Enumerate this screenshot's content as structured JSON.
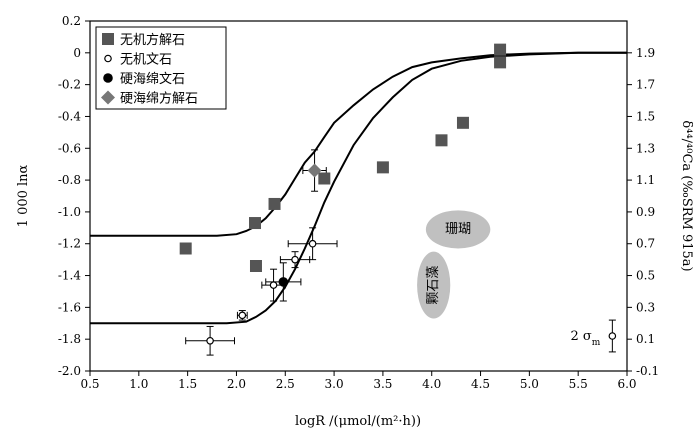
{
  "chart_data": {
    "type": "scatter",
    "xlabel": "logR /(μmol/(m²·h))",
    "ylabel": "1 000 lnα",
    "y2label": "δ⁴⁴/⁴⁰Ca (‰SRM 915a)",
    "xlim": [
      0.5,
      6.0
    ],
    "ylim": [
      -2.0,
      0.2
    ],
    "y2lim": [
      -0.1,
      2.1
    ],
    "xticks": [
      "0.5",
      "1.0",
      "1.5",
      "2.0",
      "2.5",
      "3.0",
      "3.5",
      "4.0",
      "4.5",
      "5.0",
      "5.5",
      "6.0"
    ],
    "yticks": [
      "0.2",
      "0",
      "-0.2",
      "-0.4",
      "-0.6",
      "-0.8",
      "-1.0",
      "-1.2",
      "-1.4",
      "-1.6",
      "-1.8",
      "-2.0"
    ],
    "y2ticks": [
      "1.9",
      "1.7",
      "1.5",
      "1.3",
      "1.1",
      "0.9",
      "0.7",
      "0.5",
      "0.3",
      "0.1",
      "-0.1"
    ],
    "legend_position": "top-left",
    "series": [
      {
        "name": "无机方解石",
        "marker": "square",
        "color": "#555555",
        "points": [
          {
            "x": 1.48,
            "y": -1.23
          },
          {
            "x": 2.19,
            "y": -1.07
          },
          {
            "x": 2.2,
            "y": -1.34
          },
          {
            "x": 2.39,
            "y": -0.95
          },
          {
            "x": 2.9,
            "y": -0.79
          },
          {
            "x": 3.5,
            "y": -0.72
          },
          {
            "x": 4.1,
            "y": -0.55
          },
          {
            "x": 4.32,
            "y": -0.44
          },
          {
            "x": 4.7,
            "y": 0.02
          },
          {
            "x": 4.7,
            "y": -0.06
          }
        ]
      },
      {
        "name": "无机文石",
        "marker": "open-circle",
        "color": "#000000",
        "points": [
          {
            "x": 1.73,
            "y": -1.81,
            "xerr": 0.25,
            "yerr": 0.09
          },
          {
            "x": 2.06,
            "y": -1.65,
            "xerr": 0.05,
            "yerr": 0.03
          },
          {
            "x": 2.38,
            "y": -1.46,
            "xerr": 0.12,
            "yerr": 0.1
          },
          {
            "x": 2.6,
            "y": -1.3,
            "xerr": 0.15,
            "yerr": 0.05
          },
          {
            "x": 2.78,
            "y": -1.2,
            "xerr": 0.25,
            "yerr": 0.1
          }
        ]
      },
      {
        "name": "硬海绵文石",
        "marker": "filled-circle",
        "color": "#000000",
        "points": [
          {
            "x": 2.48,
            "y": -1.44,
            "xerr": 0.18,
            "yerr": 0.12
          }
        ]
      },
      {
        "name": "硬海绵方解石",
        "marker": "diamond",
        "color": "#777777",
        "points": [
          {
            "x": 2.8,
            "y": -0.74,
            "xerr": 0.12,
            "yerr": 0.13
          }
        ]
      }
    ],
    "curves": [
      {
        "points": [
          [
            0.5,
            -1.15
          ],
          [
            1.5,
            -1.15
          ],
          [
            1.8,
            -1.15
          ],
          [
            2.0,
            -1.14
          ],
          [
            2.1,
            -1.12
          ],
          [
            2.2,
            -1.09
          ],
          [
            2.3,
            -1.04
          ],
          [
            2.4,
            -0.97
          ],
          [
            2.5,
            -0.89
          ],
          [
            2.6,
            -0.79
          ],
          [
            2.7,
            -0.69
          ],
          [
            2.8,
            -0.62
          ],
          [
            2.9,
            -0.53
          ],
          [
            3.0,
            -0.44
          ],
          [
            3.2,
            -0.33
          ],
          [
            3.4,
            -0.23
          ],
          [
            3.6,
            -0.15
          ],
          [
            3.8,
            -0.09
          ],
          [
            4.0,
            -0.06
          ],
          [
            4.3,
            -0.035
          ],
          [
            4.6,
            -0.015
          ],
          [
            5.0,
            -0.005
          ],
          [
            5.5,
            0.0
          ],
          [
            6.0,
            0.0
          ]
        ]
      },
      {
        "points": [
          [
            0.5,
            -1.7
          ],
          [
            1.5,
            -1.7
          ],
          [
            1.9,
            -1.7
          ],
          [
            2.1,
            -1.69
          ],
          [
            2.2,
            -1.66
          ],
          [
            2.3,
            -1.62
          ],
          [
            2.4,
            -1.56
          ],
          [
            2.5,
            -1.47
          ],
          [
            2.6,
            -1.36
          ],
          [
            2.7,
            -1.23
          ],
          [
            2.8,
            -1.09
          ],
          [
            2.9,
            -0.94
          ],
          [
            3.0,
            -0.81
          ],
          [
            3.2,
            -0.58
          ],
          [
            3.4,
            -0.41
          ],
          [
            3.6,
            -0.28
          ],
          [
            3.8,
            -0.17
          ],
          [
            4.0,
            -0.1
          ],
          [
            4.3,
            -0.05
          ],
          [
            4.6,
            -0.025
          ],
          [
            5.0,
            -0.01
          ],
          [
            5.5,
            0.0
          ],
          [
            6.0,
            0.0
          ]
        ]
      }
    ],
    "annotations": [
      {
        "text": "珊瑚",
        "x": 4.27,
        "y": -1.11,
        "rx": 0.33,
        "ry": 0.12,
        "rotate": false,
        "fill": "#c0c0c0"
      },
      {
        "text": "颗石藻",
        "x": 4.02,
        "y": -1.46,
        "rx": 0.17,
        "ry": 0.21,
        "rotate": true,
        "fill": "#c0c0c0"
      }
    ],
    "error_legend": {
      "text": "2 σ",
      "sub": "m",
      "x": 5.85,
      "y": -1.78,
      "yerr": 0.1
    }
  }
}
